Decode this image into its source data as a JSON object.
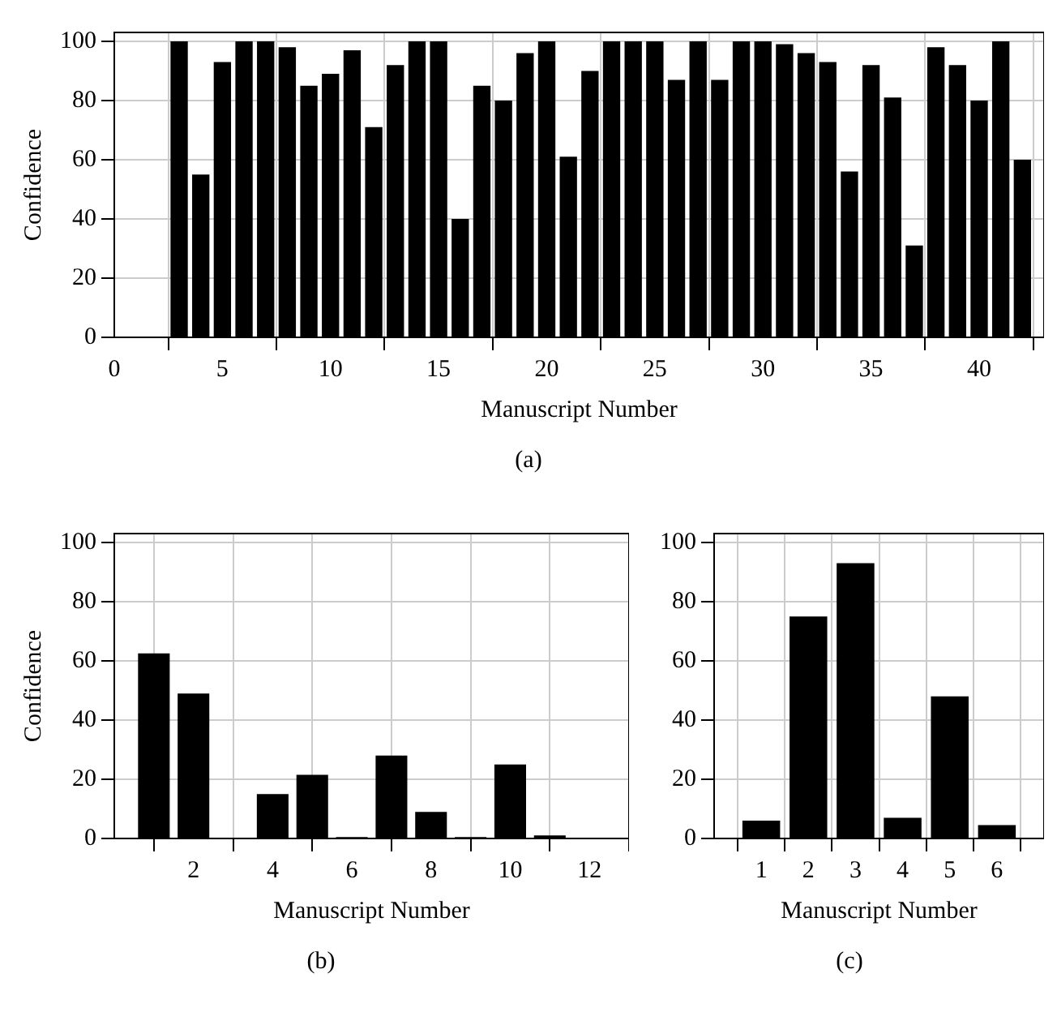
{
  "chart_data": [
    {
      "type": "bar",
      "xlabel": "Manuscript Number",
      "ylabel": "Confidence",
      "annotations": [
        "(a)"
      ],
      "x": [
        3,
        4,
        5,
        6,
        7,
        8,
        9,
        10,
        11,
        12,
        13,
        14,
        15,
        16,
        17,
        18,
        19,
        20,
        21,
        22,
        23,
        24,
        25,
        26,
        27,
        28,
        29,
        30,
        31,
        32,
        33,
        34,
        35,
        36,
        37,
        38,
        39,
        40,
        41,
        42
      ],
      "series": [
        {
          "color": "#000000",
          "values": [
            100,
            55,
            93,
            100,
            100,
            98,
            85,
            89,
            97,
            71,
            92,
            100,
            100,
            40,
            85,
            80,
            96,
            100,
            61,
            90,
            100,
            100,
            100,
            87,
            100,
            87,
            100,
            100,
            99,
            96,
            93,
            56,
            92,
            81,
            31,
            98,
            92,
            80,
            100,
            60
          ]
        }
      ],
      "xlim": [
        0,
        43
      ],
      "xticks": [
        0,
        5,
        10,
        15,
        20,
        25,
        30,
        35,
        40
      ],
      "ylim": [
        0,
        103
      ],
      "yticks": [
        0,
        20,
        40,
        60,
        80,
        100
      ],
      "grid": true,
      "legend": false
    },
    {
      "type": "bar",
      "xlabel": "Manuscript Number",
      "ylabel": "Confidence",
      "annotations": [
        "(b)"
      ],
      "x": [
        1,
        2,
        3,
        4,
        5,
        6,
        7,
        8,
        9,
        10,
        11,
        12
      ],
      "series": [
        {
          "color": "#000000",
          "values": [
            62.5,
            49,
            0.3,
            15,
            21.5,
            0.5,
            28,
            9,
            0.5,
            25,
            1,
            0.3
          ]
        }
      ],
      "xlim": [
        0,
        13
      ],
      "xticks": [
        2,
        4,
        6,
        8,
        10,
        12
      ],
      "ylim": [
        0,
        103
      ],
      "yticks": [
        0,
        20,
        40,
        60,
        80,
        100
      ],
      "grid": true,
      "legend": false
    },
    {
      "type": "bar",
      "xlabel": "Manuscript Number",
      "annotations": [
        "(c)"
      ],
      "x": [
        1,
        2,
        3,
        4,
        5,
        6
      ],
      "series": [
        {
          "color": "#000000",
          "values": [
            6,
            75,
            93,
            7,
            48,
            4.5
          ]
        }
      ],
      "xlim": [
        0,
        7
      ],
      "xticks": [
        1,
        2,
        3,
        4,
        5,
        6
      ],
      "ylim": [
        0,
        103
      ],
      "yticks": [
        0,
        20,
        40,
        60,
        80,
        100
      ],
      "grid": true,
      "legend": false
    }
  ]
}
